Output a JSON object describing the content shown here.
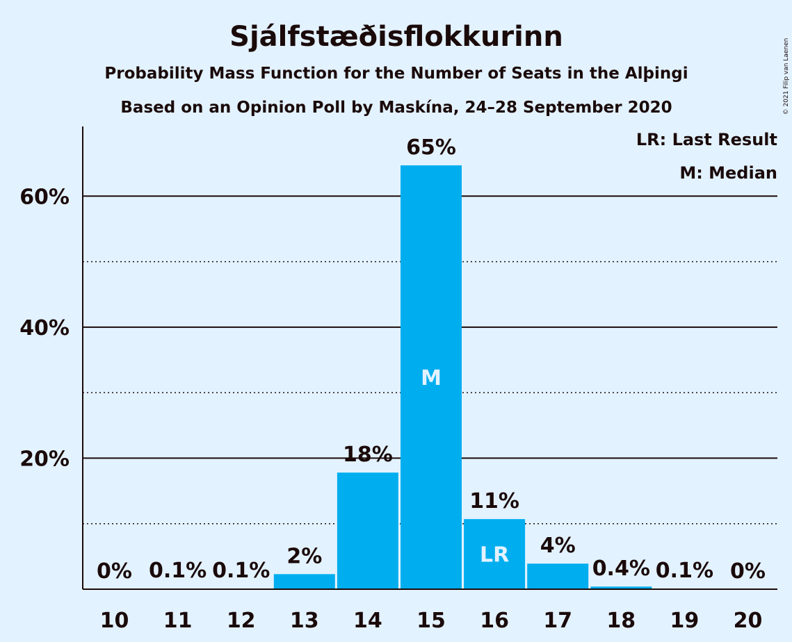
{
  "header": {
    "title": "Sjálfstæðisflokkurinn",
    "subtitle1": "Probability Mass Function for the Number of Seats in the Alþingi",
    "subtitle2": "Based on an Opinion Poll by Maskína, 24–28 September 2020"
  },
  "legend": {
    "lr": "LR: Last Result",
    "m": "M: Median"
  },
  "credit": "© 2021 Filip van Laenen",
  "colors": {
    "background": "#e3f2ff",
    "bar": "#00aeef",
    "text": "#1a0a0a"
  },
  "chart_data": {
    "type": "bar",
    "categories": [
      "10",
      "11",
      "12",
      "13",
      "14",
      "15",
      "16",
      "17",
      "18",
      "19",
      "20"
    ],
    "values": [
      0,
      0.1,
      0.1,
      2.3,
      17.8,
      64.7,
      10.7,
      3.9,
      0.4,
      0.1,
      0
    ],
    "value_labels": [
      "0%",
      "0.1%",
      "0.1%",
      "2%",
      "18%",
      "65%",
      "11%",
      "4%",
      "0.4%",
      "0.1%",
      "0%"
    ],
    "ylim": [
      0,
      70
    ],
    "yticks": [
      20,
      40,
      60
    ],
    "ytick_labels": [
      "20%",
      "40%",
      "60%"
    ],
    "minor_gridlines": [
      10,
      30,
      50
    ],
    "markers": {
      "15": "M",
      "16": "LR"
    }
  }
}
